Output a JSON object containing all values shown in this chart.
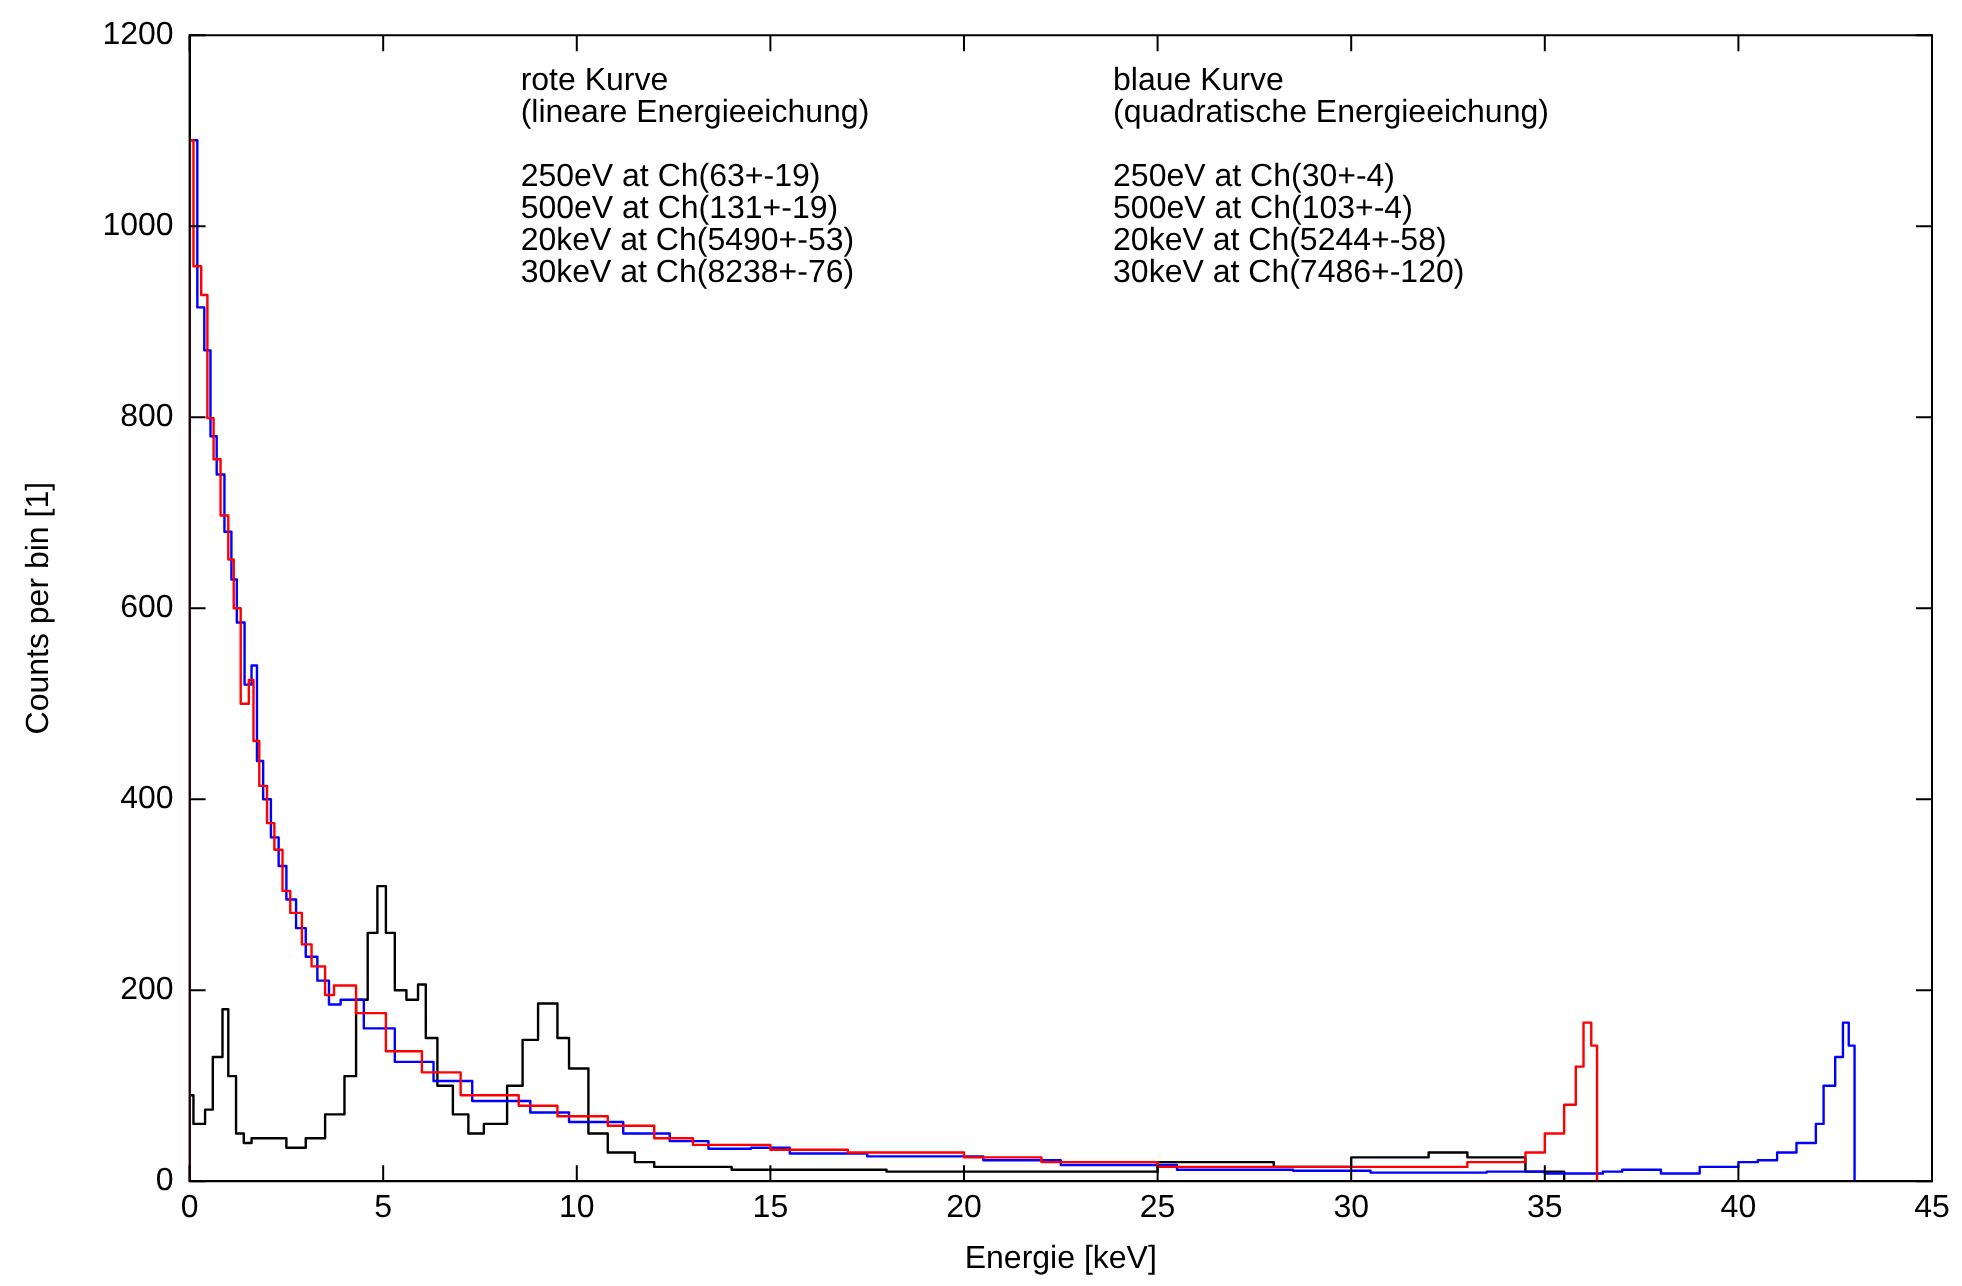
{
  "chart_data": {
    "type": "step",
    "xlabel": "Energie [keV]",
    "ylabel": "Counts per bin [1]",
    "xlim": [
      0,
      45
    ],
    "xticks": [
      0,
      5,
      10,
      15,
      20,
      25,
      30,
      35,
      40,
      45
    ],
    "ylim": [
      0,
      1200
    ],
    "yticks": [
      0,
      200,
      400,
      600,
      800,
      1000,
      1200
    ],
    "grid": false,
    "legend": false,
    "annotations": [
      "rote Kurve\n(lineare Energieeichung)\n\n250eV at Ch(63+-19)\n500eV at Ch(131+-19)\n20keV at Ch(5490+-53)\n30keV at Ch(8238+-76)",
      "blaue Kurve\n(quadratische Energieeichung)\n\n250eV at Ch(30+-4)\n500eV at Ch(103+-4)\n20keV at Ch(5244+-58)\n30keV at Ch(7486+-120)"
    ],
    "series": [
      {
        "color": "#ff0000",
        "x": [
          0,
          0.1,
          0.3,
          0.46,
          0.62,
          0.8,
          1.0,
          1.14,
          1.32,
          1.53,
          1.65,
          1.8,
          2.0,
          2.19,
          2.4,
          2.6,
          2.9,
          3.15,
          3.5,
          3.73,
          4.3,
          5.07,
          6,
          7,
          8.5,
          9.5,
          10.8,
          12,
          13,
          14,
          15,
          17,
          20,
          22,
          25,
          28,
          30,
          33,
          34.5,
          35,
          35.5,
          35.8,
          36.0,
          36.2,
          36.35,
          36.4
        ],
        "values": [
          0,
          1090,
          958,
          928,
          799,
          756,
          697,
          651,
          600,
          500,
          525,
          461,
          414,
          375,
          347,
          304,
          281,
          248,
          225,
          195,
          205,
          176,
          136,
          114,
          90,
          79,
          68,
          58,
          45,
          38,
          38,
          33,
          30,
          25,
          20,
          15,
          15,
          15,
          20,
          30,
          50,
          80,
          120,
          166,
          142,
          0
        ]
      },
      {
        "color": "#0000ff",
        "x": [
          0,
          0.2,
          0.38,
          0.54,
          0.7,
          0.9,
          1.08,
          1.22,
          1.42,
          1.6,
          1.74,
          1.9,
          2.1,
          2.3,
          2.5,
          2.75,
          3.0,
          3.3,
          3.6,
          3.9,
          4.5,
          5.3,
          6.3,
          7.3,
          8.8,
          9.8,
          11.2,
          12.4,
          13.4,
          14.5,
          15.5,
          17.5,
          20.5,
          22.5,
          25.5,
          28.5,
          30.5,
          33.5,
          35,
          36.5,
          37,
          38,
          39,
          40,
          40.5,
          41,
          41.5,
          42,
          42.2,
          42.5,
          42.7,
          42.85,
          43.0,
          43.1
        ],
        "values": [
          0,
          1090,
          915,
          870,
          780,
          740,
          680,
          630,
          585,
          520,
          540,
          440,
          400,
          360,
          330,
          295,
          265,
          235,
          210,
          185,
          190,
          160,
          125,
          105,
          84,
          72,
          62,
          50,
          42,
          34,
          35,
          29,
          26,
          22,
          17,
          12,
          11,
          9,
          10,
          8,
          10,
          12,
          8,
          15,
          20,
          22,
          30,
          40,
          60,
          100,
          130,
          166,
          142,
          0
        ]
      },
      {
        "color": "#000000",
        "x": [
          0,
          0.1,
          0.4,
          0.6,
          0.85,
          1.0,
          1.2,
          1.4,
          1.6,
          2.5,
          3.0,
          3.5,
          4.0,
          4.3,
          4.6,
          4.85,
          5.07,
          5.3,
          5.6,
          5.9,
          6.1,
          6.4,
          6.8,
          7.2,
          7.6,
          8.2,
          8.6,
          9.0,
          9.5,
          9.8,
          10.3,
          10.8,
          11.5,
          12,
          14,
          18,
          22,
          25,
          28,
          30,
          32,
          33,
          34.5,
          35.5,
          36
        ],
        "values": [
          0,
          90,
          60,
          75,
          130,
          180,
          110,
          50,
          40,
          45,
          35,
          45,
          70,
          110,
          190,
          260,
          309,
          260,
          200,
          190,
          206,
          150,
          100,
          70,
          50,
          60,
          100,
          148,
          186,
          150,
          118,
          50,
          30,
          20,
          15,
          12,
          10,
          10,
          20,
          15,
          25,
          30,
          25,
          10,
          0
        ]
      }
    ]
  }
}
